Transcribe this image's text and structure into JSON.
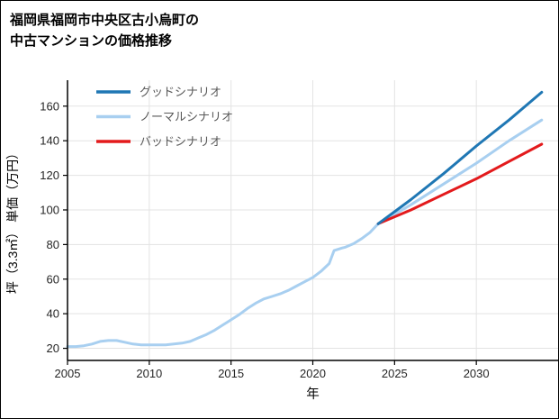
{
  "title": {
    "line1": "福岡県福岡市中央区古小烏町の",
    "line2": "中古マンションの価格推移"
  },
  "chart_data": {
    "type": "line",
    "title": "福岡県福岡市中央区古小烏町の中古マンションの価格推移",
    "xlabel": "年",
    "ylabel": "坪（3.3㎡） 単価（万円）",
    "xlim": [
      2005,
      2035
    ],
    "ylim": [
      13,
      175
    ],
    "x_ticks": [
      2005,
      2010,
      2015,
      2020,
      2025,
      2030
    ],
    "y_ticks": [
      20,
      40,
      60,
      80,
      100,
      120,
      140,
      160
    ],
    "grid": true,
    "legend_position": "top-left",
    "colors": {
      "good": "#1f77b4",
      "normal": "#a8cff0",
      "bad": "#e31a1c",
      "grid": "#e3e3e3",
      "axis": "#000000",
      "tick_label": "#262626",
      "legend_label": "#595959"
    },
    "legend_order": [
      "good",
      "normal",
      "bad"
    ],
    "series": [
      {
        "id": "normal",
        "name": "ノーマルシナリオ",
        "color": "#a8cff0",
        "x": [
          2005,
          2005.5,
          2006,
          2006.5,
          2007,
          2007.5,
          2008,
          2008.5,
          2009,
          2009.5,
          2010,
          2010.5,
          2011,
          2011.5,
          2012,
          2012.5,
          2013,
          2013.5,
          2014,
          2014.5,
          2015,
          2015.5,
          2016,
          2016.5,
          2017,
          2017.5,
          2018,
          2018.5,
          2019,
          2019.5,
          2020,
          2020.5,
          2021,
          2021.3,
          2021.8,
          2022,
          2022.5,
          2023,
          2023.5,
          2024,
          2026,
          2028,
          2030,
          2032,
          2034
        ],
        "values": [
          21,
          21,
          21.5,
          22.5,
          24,
          24.5,
          24.5,
          23.5,
          22.5,
          22,
          22,
          22,
          22,
          22.5,
          23,
          24,
          26,
          28,
          30.5,
          33.5,
          36.5,
          39.5,
          43,
          46,
          48.5,
          50,
          51.5,
          53.5,
          56,
          58.5,
          61,
          64.5,
          69,
          76.5,
          78,
          78.5,
          80.5,
          83.5,
          87,
          92,
          103,
          115,
          127,
          140,
          152
        ]
      },
      {
        "id": "good",
        "name": "グッドシナリオ",
        "color": "#1f77b4",
        "x": [
          2024,
          2026,
          2028,
          2030,
          2032,
          2034
        ],
        "values": [
          92,
          106,
          121,
          137,
          152,
          168
        ]
      },
      {
        "id": "bad",
        "name": "バッドシナリオ",
        "color": "#e31a1c",
        "x": [
          2024,
          2026,
          2028,
          2030,
          2032,
          2034
        ],
        "values": [
          92,
          100,
          109,
          118,
          128,
          138
        ]
      }
    ]
  }
}
